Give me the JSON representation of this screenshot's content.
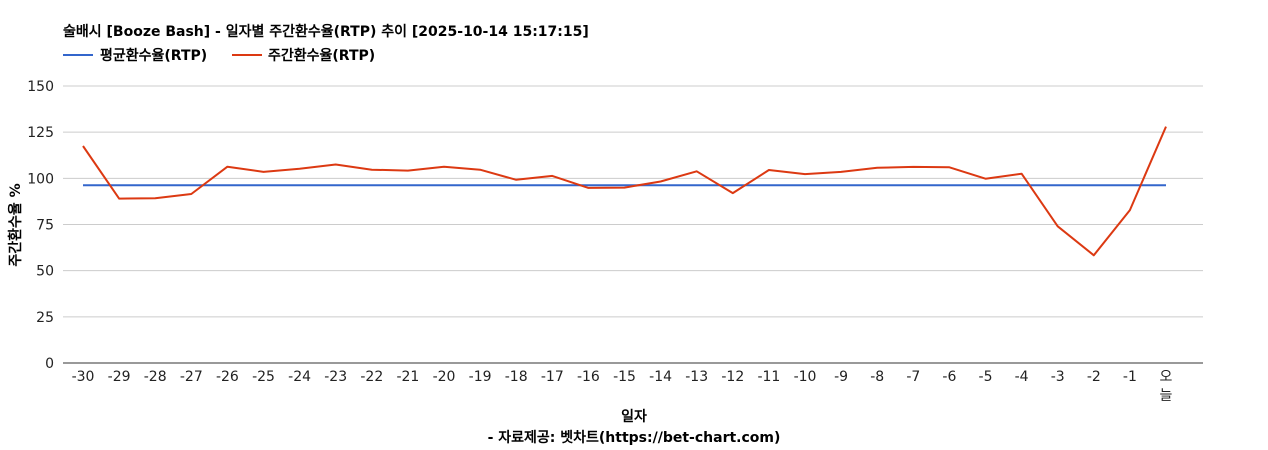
{
  "colors": {
    "avg_series": "#3366cc",
    "weekly_series": "#dc3912",
    "grid": "#cccccc"
  },
  "chart_data": {
    "type": "line",
    "title": "술배시 [Booze Bash] - 일자별 주간환수율(RTP) 추이 [2025-10-14 15:17:15]",
    "xlabel": "일자",
    "ylabel": "주간환수율 %",
    "source": "- 자료제공: 벳차트(https://bet-chart.com)",
    "legend_position": "top-left",
    "grid": true,
    "ylim": [
      0,
      150
    ],
    "yticks": [
      "150",
      "125",
      "100",
      "75",
      "50",
      "25",
      "0"
    ],
    "categories": [
      "-30",
      "-29",
      "-28",
      "-27",
      "-26",
      "-25",
      "-24",
      "-23",
      "-22",
      "-21",
      "-20",
      "-19",
      "-18",
      "-17",
      "-16",
      "-15",
      "-14",
      "-13",
      "-12",
      "-11",
      "-10",
      "-9",
      "-8",
      "-7",
      "-6",
      "-5",
      "-4",
      "-3",
      "-2",
      "-1",
      "오늘"
    ],
    "series": [
      {
        "name": "평균환수율(RTP)",
        "color": "#3366cc",
        "values": [
          96.3,
          96.3,
          96.3,
          96.3,
          96.3,
          96.3,
          96.3,
          96.3,
          96.3,
          96.3,
          96.3,
          96.3,
          96.3,
          96.3,
          96.3,
          96.3,
          96.3,
          96.3,
          96.3,
          96.3,
          96.3,
          96.3,
          96.3,
          96.3,
          96.3,
          96.3,
          96.3,
          96.3,
          96.3,
          96.3,
          96.3
        ]
      },
      {
        "name": "주간환수율(RTP)",
        "color": "#dc3912",
        "values": [
          117.5,
          89,
          89.2,
          91.5,
          106.3,
          103.5,
          105.2,
          107.5,
          104.7,
          104.2,
          106.3,
          104.7,
          99.2,
          101.3,
          94.8,
          95,
          98.3,
          103.8,
          92,
          104.5,
          102.3,
          103.5,
          105.7,
          106.2,
          106,
          99.8,
          102.5,
          74,
          58.3,
          82.8,
          128
        ]
      }
    ]
  }
}
